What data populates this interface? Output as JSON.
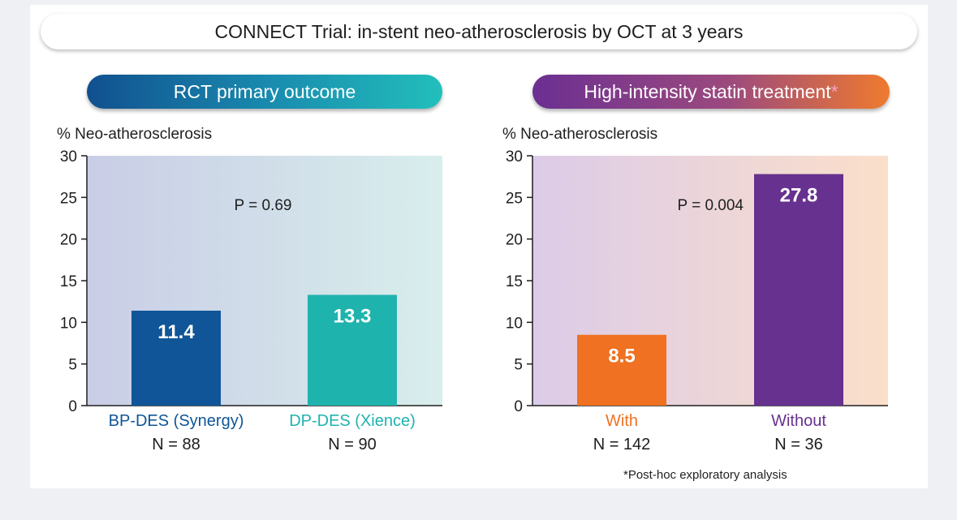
{
  "header": {
    "title": "CONNECT Trial: in-stent neo-atherosclerosis by OCT at 3 years"
  },
  "panels": [
    {
      "heading": "RCT primary outcome",
      "heading_suffix": ""
    },
    {
      "heading": "High-intensity statin treatment",
      "heading_suffix": "*"
    }
  ],
  "footnote": "*Post-hoc exploratory analysis",
  "colors": {
    "bp_des": "#0f5597",
    "dp_des": "#1fb3ad",
    "with": "#ef7121",
    "without": "#66318f",
    "left_bg_start": "#c9cde6",
    "left_bg_end": "#d8eeec",
    "right_bg_start": "#dccbe8",
    "right_bg_end": "#fbdfca"
  },
  "chart_data": [
    {
      "type": "bar",
      "ylabel": "% Neo-atherosclerosis",
      "ylim": [
        0,
        30
      ],
      "yticks": [
        0,
        5,
        10,
        15,
        20,
        25,
        30
      ],
      "categories": [
        "BP-DES (Synergy)",
        "DP-DES (Xience)"
      ],
      "n_labels": [
        "N = 88",
        "N = 90"
      ],
      "values": [
        11.4,
        13.3
      ],
      "value_labels": [
        "11.4",
        "13.3"
      ],
      "annotation": "P = 0.69"
    },
    {
      "type": "bar",
      "ylabel": "% Neo-atherosclerosis",
      "ylim": [
        0,
        30
      ],
      "yticks": [
        0,
        5,
        10,
        15,
        20,
        25,
        30
      ],
      "categories": [
        "With",
        "Without"
      ],
      "n_labels": [
        "N = 142",
        "N = 36"
      ],
      "values": [
        8.5,
        27.8
      ],
      "value_labels": [
        "8.5",
        "27.8"
      ],
      "annotation": "P = 0.004"
    }
  ]
}
